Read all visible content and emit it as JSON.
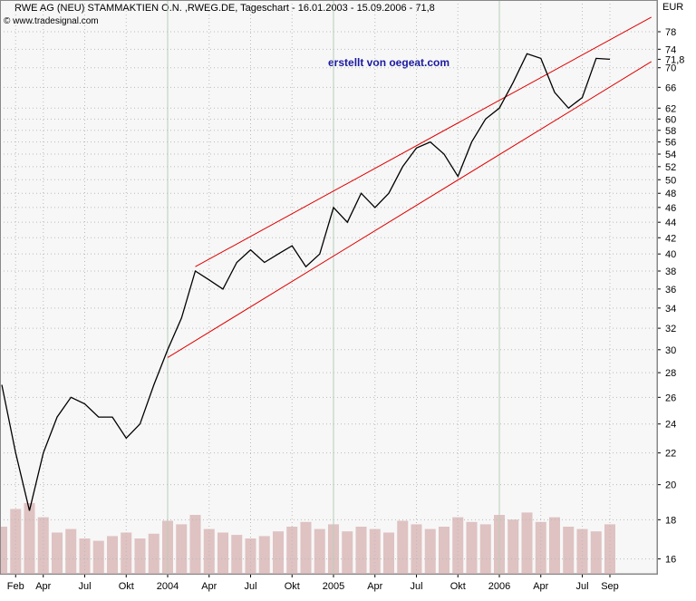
{
  "chart_data": {
    "type": "line",
    "title": "RWE AG (NEU) STAMMAKTIEN O.N. ,RWEG.DE, Tageschart - 16.01.2003 - 15.09.2006 - 71,8",
    "subtitle": "© www.tradesignal.com",
    "annotation": "erstellt von oegeat.com",
    "y_axis_label": "EUR",
    "log_scale": true,
    "grid": true,
    "categories": [
      null,
      "Feb",
      null,
      "Apr",
      null,
      null,
      "Jul",
      null,
      null,
      "Okt",
      null,
      null,
      "2004",
      null,
      null,
      "Apr",
      null,
      null,
      "Jul",
      null,
      null,
      "Okt",
      null,
      null,
      "2005",
      null,
      null,
      "Apr",
      null,
      null,
      "Jul",
      null,
      null,
      "Okt",
      null,
      null,
      "2006",
      null,
      null,
      "Apr",
      null,
      null,
      "Jul",
      null,
      "Sep"
    ],
    "series": [
      {
        "color": "#000000",
        "values": [
          27,
          22,
          18.5,
          22,
          24.5,
          26,
          25.5,
          24.5,
          24.5,
          23,
          24,
          27,
          30,
          33,
          38,
          37,
          36,
          39,
          40.5,
          39,
          40,
          41,
          38.5,
          40,
          46,
          44,
          48,
          46,
          48,
          52,
          55,
          56,
          54,
          50.5,
          56,
          60,
          62,
          67,
          73,
          72,
          65,
          62,
          64,
          72,
          71.8
        ]
      }
    ],
    "volume": {
      "color": "#d8b4b4",
      "values": [
        40,
        55,
        60,
        48,
        35,
        38,
        30,
        28,
        32,
        35,
        30,
        34,
        45,
        42,
        50,
        38,
        35,
        33,
        30,
        32,
        36,
        40,
        44,
        38,
        42,
        36,
        40,
        38,
        35,
        45,
        42,
        38,
        40,
        48,
        44,
        42,
        50,
        46,
        52,
        44,
        48,
        40,
        38,
        36,
        42
      ]
    },
    "volume_lim": [
      0,
      100
    ],
    "trendlines": [
      {
        "color": "#e00000",
        "x": [
          14,
          47
        ],
        "values": [
          38.5,
          81.5
        ]
      },
      {
        "color": "#e00000",
        "x": [
          12,
          47
        ],
        "values": [
          29.3,
          71.3
        ]
      }
    ],
    "last_price": {
      "value": 71.8,
      "label": "71,8"
    },
    "ylim": [
      15.3,
      85.8
    ],
    "yticks": [
      16,
      18,
      20,
      22,
      24,
      26,
      28,
      30,
      32,
      34,
      36,
      38,
      40,
      42,
      44,
      46,
      48,
      50,
      52,
      54,
      56,
      58,
      60,
      62,
      66,
      70,
      74,
      78
    ]
  }
}
